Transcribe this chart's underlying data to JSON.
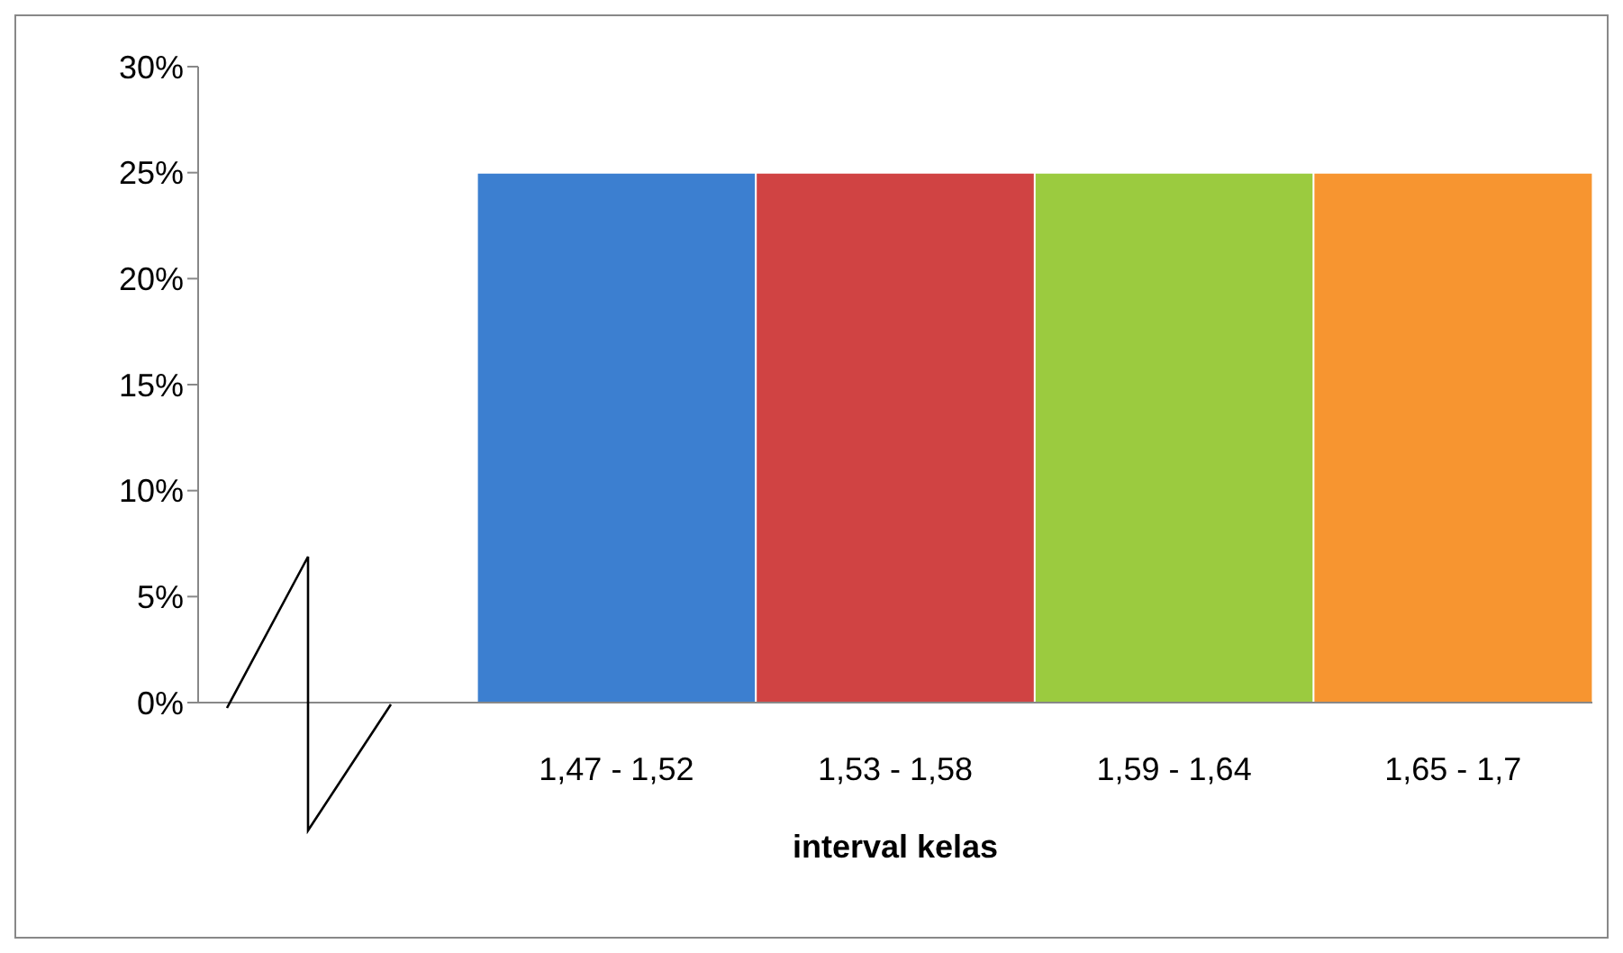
{
  "chart_data": {
    "type": "bar",
    "xlabel": "interval kelas",
    "categories": [
      null,
      "1,47 - 1,52",
      "1,53 - 1,58",
      "1,59 - 1,64",
      "1,65 - 1,7"
    ],
    "values": [
      null,
      25,
      25,
      25,
      25
    ],
    "colors": [
      "#3c7fd0",
      "#3c7fd0",
      "#d04343",
      "#9bcb3f",
      "#f79530"
    ],
    "ylim": [
      0,
      30
    ],
    "yticks": [
      {
        "value": 0,
        "label": "0%"
      },
      {
        "value": 5,
        "label": "5%"
      },
      {
        "value": 10,
        "label": "10%"
      },
      {
        "value": 15,
        "label": "15%"
      },
      {
        "value": 20,
        "label": "20%"
      },
      {
        "value": 25,
        "label": "25%"
      },
      {
        "value": 30,
        "label": "30%"
      }
    ],
    "grid": false,
    "legend": false
  }
}
